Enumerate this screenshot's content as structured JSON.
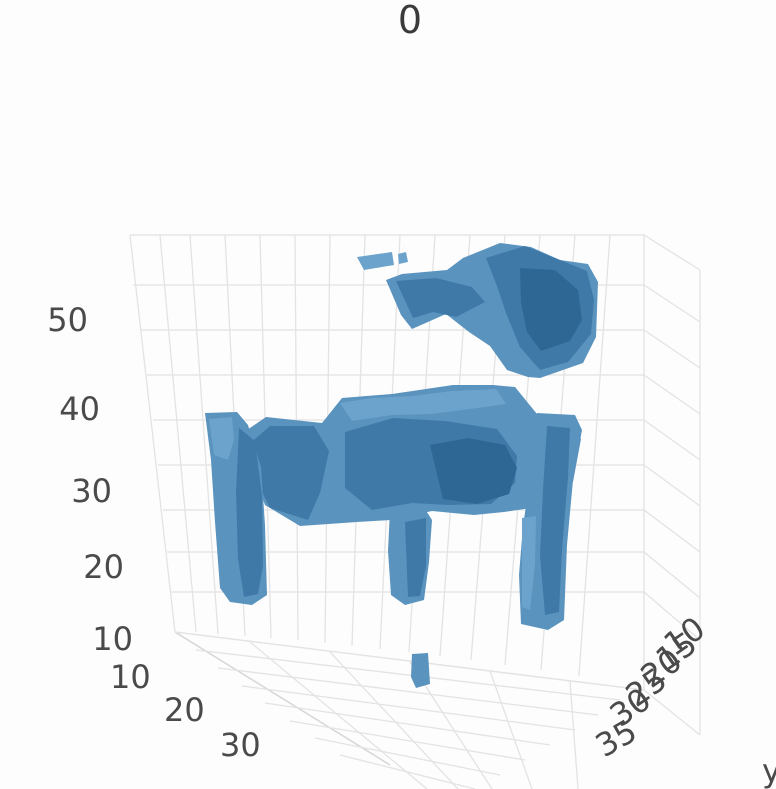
{
  "chart_data": {
    "type": "scatter",
    "subtype": "3d-voxel",
    "top_label": "0",
    "z_ticks": [
      "50",
      "40",
      "30",
      "20",
      "10"
    ],
    "x_ticks": [
      "10",
      "20",
      "30"
    ],
    "y_ticks": [
      "10",
      "15",
      "20",
      "25",
      "30",
      "35"
    ],
    "axis_y_partial_label": "y",
    "series": [
      {
        "values": [],
        "color": "#4f89b8"
      }
    ],
    "colors": {
      "main": "#5b93bf",
      "dark": "#3f79a8",
      "deep": "#2f6794",
      "light": "#6ca3cc"
    },
    "grid": true
  }
}
